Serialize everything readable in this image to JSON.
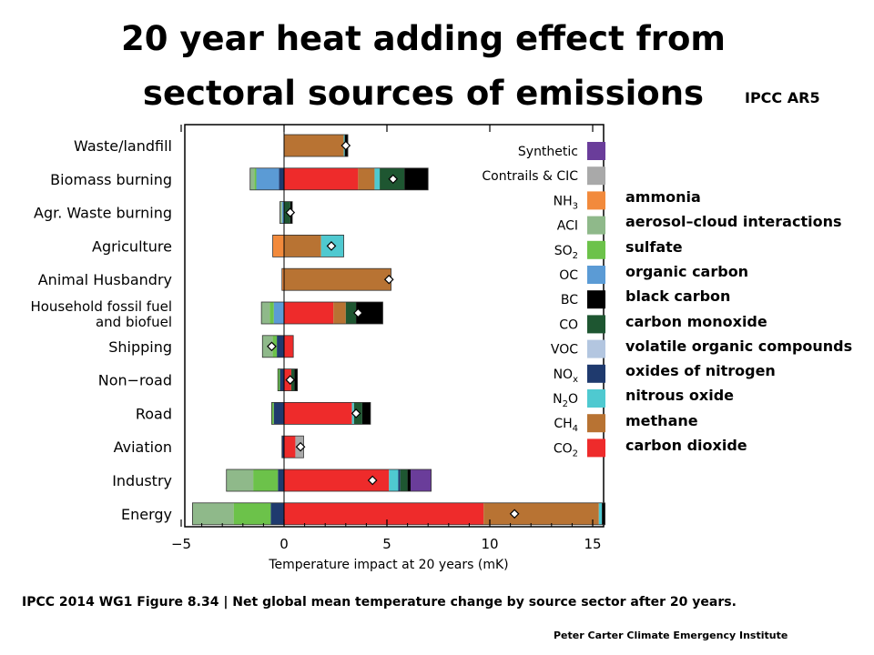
{
  "title_line1": "20 year heat adding effect from",
  "title_line2": "sectoral sources of emissions",
  "source_tag": "IPCC AR5",
  "caption": "IPCC 2014 WG1 Figure 8.34 | Net global mean temperature change by source sector after 20 years.",
  "credit": "Peter Carter Climate Emergency Institute",
  "gas_descriptions": [
    "ammonia",
    "aerosol–cloud interactions",
    "sulfate",
    "organic carbon",
    "black carbon",
    "carbon monoxide",
    "volatile organic compounds",
    "oxides of nitrogen",
    "nitrous oxide",
    "methane",
    "carbon dioxide"
  ],
  "chart_data": {
    "type": "bar",
    "orientation": "horizontal",
    "stacked": true,
    "xlabel": "Temperature impact at 20 years (mK)",
    "xlim": [
      -5,
      16
    ],
    "xticks": [
      -5,
      0,
      5,
      10,
      15
    ],
    "grid": false,
    "legend_position": "right",
    "colors": {
      "Synthetic": "#6a3d9a",
      "Contrails & CIC": "#a9a9a9",
      "NH3": "#f28a3c",
      "ACI": "#8fb98a",
      "SO2": "#6cc24a",
      "OC": "#5b9bd5",
      "BC": "#000000",
      "CO": "#1e5631",
      "VOC": "#b3c6e0",
      "NOx": "#1f3a6e",
      "N2O": "#4fc9d0",
      "CH4": "#b87333",
      "CO2": "#ee2b2b"
    },
    "legend": [
      {
        "key": "Synthetic",
        "label": "Synthetic",
        "sub": ""
      },
      {
        "key": "Contrails & CIC",
        "label": "Contrails & CIC",
        "sub": ""
      },
      {
        "key": "NH3",
        "label": "NH",
        "sub": "3"
      },
      {
        "key": "ACI",
        "label": "ACI",
        "sub": ""
      },
      {
        "key": "SO2",
        "label": "SO",
        "sub": "2"
      },
      {
        "key": "OC",
        "label": "OC",
        "sub": ""
      },
      {
        "key": "BC",
        "label": "BC",
        "sub": ""
      },
      {
        "key": "CO",
        "label": "CO",
        "sub": ""
      },
      {
        "key": "VOC",
        "label": "VOC",
        "sub": ""
      },
      {
        "key": "NOx",
        "label": "NO",
        "sub": "x"
      },
      {
        "key": "N2O",
        "label": "N",
        "sub": "2",
        "tail": "O"
      },
      {
        "key": "CH4",
        "label": "CH",
        "sub": "4"
      },
      {
        "key": "CO2",
        "label": "CO",
        "sub": "2"
      }
    ],
    "sectors": [
      {
        "name": [
          "Waste/landfill"
        ],
        "net": 3.0,
        "positive": [
          [
            "CH4",
            2.9
          ],
          [
            "N2O",
            0.05
          ],
          [
            "BC",
            0.15
          ]
        ],
        "negative": []
      },
      {
        "name": [
          "Biomass burning"
        ],
        "net": 5.3,
        "positive": [
          [
            "CO2",
            3.6
          ],
          [
            "CH4",
            0.8
          ],
          [
            "N2O",
            0.25
          ],
          [
            "CO",
            1.2
          ],
          [
            "BC",
            1.15
          ]
        ],
        "negative": [
          [
            "NOx",
            0.25
          ],
          [
            "OC",
            1.1
          ],
          [
            "SO2",
            0.1
          ],
          [
            "ACI",
            0.2
          ]
        ]
      },
      {
        "name": [
          "Agr. Waste burning"
        ],
        "net": 0.3,
        "positive": [
          [
            "CO",
            0.3
          ],
          [
            "BC",
            0.1
          ]
        ],
        "negative": [
          [
            "OC",
            0.1
          ],
          [
            "ACI",
            0.1
          ]
        ]
      },
      {
        "name": [
          "Agriculture"
        ],
        "net": 2.3,
        "positive": [
          [
            "CH4",
            1.8
          ],
          [
            "N2O",
            1.1
          ]
        ],
        "negative": [
          [
            "NH3",
            0.55
          ]
        ]
      },
      {
        "name": [
          "Animal Husbandry"
        ],
        "net": 5.1,
        "positive": [
          [
            "CH4",
            5.2
          ]
        ],
        "negative": [
          [
            "NH3",
            0.1
          ]
        ]
      },
      {
        "name": [
          "Household fossil fuel",
          "and biofuel"
        ],
        "net": 3.6,
        "positive": [
          [
            "CO2",
            2.4
          ],
          [
            "CH4",
            0.6
          ],
          [
            "CO",
            0.5
          ],
          [
            "BC",
            1.3
          ]
        ],
        "negative": [
          [
            "OC",
            0.5
          ],
          [
            "SO2",
            0.2
          ],
          [
            "ACI",
            0.4
          ]
        ]
      },
      {
        "name": [
          "Shipping"
        ],
        "net": -0.6,
        "positive": [
          [
            "CO2",
            0.45
          ]
        ],
        "negative": [
          [
            "NOx",
            0.35
          ],
          [
            "SO2",
            0.2
          ],
          [
            "ACI",
            0.5
          ]
        ]
      },
      {
        "name": [
          "Non−road"
        ],
        "net": 0.3,
        "positive": [
          [
            "CO2",
            0.35
          ],
          [
            "CO",
            0.15
          ],
          [
            "BC",
            0.15
          ]
        ],
        "negative": [
          [
            "NOx",
            0.2
          ],
          [
            "SO2",
            0.1
          ]
        ]
      },
      {
        "name": [
          "Road"
        ],
        "net": 3.5,
        "positive": [
          [
            "CO2",
            3.3
          ],
          [
            "N2O",
            0.1
          ],
          [
            "CO",
            0.4
          ],
          [
            "BC",
            0.4
          ]
        ],
        "negative": [
          [
            "NOx",
            0.5
          ],
          [
            "SO2",
            0.1
          ]
        ]
      },
      {
        "name": [
          "Aviation"
        ],
        "net": 0.8,
        "positive": [
          [
            "CO2",
            0.55
          ],
          [
            "Contrails & CIC",
            0.4
          ]
        ],
        "negative": [
          [
            "NOx",
            0.1
          ]
        ]
      },
      {
        "name": [
          "Industry"
        ],
        "net": 4.3,
        "positive": [
          [
            "CO2",
            5.1
          ],
          [
            "N2O",
            0.45
          ],
          [
            "NOx",
            0.1
          ],
          [
            "CO",
            0.35
          ],
          [
            "BC",
            0.15
          ],
          [
            "Synthetic",
            1.0
          ]
        ],
        "negative": [
          [
            "NOx",
            0.3
          ],
          [
            "SO2",
            1.2
          ],
          [
            "ACI",
            1.3
          ]
        ]
      },
      {
        "name": [
          "Energy"
        ],
        "net": 11.2,
        "positive": [
          [
            "CO2",
            9.7
          ],
          [
            "CH4",
            5.6
          ],
          [
            "N2O",
            0.15
          ],
          [
            "BC",
            0.15
          ]
        ],
        "negative": [
          [
            "NOx",
            0.65
          ],
          [
            "SO2",
            1.8
          ],
          [
            "ACI",
            2.0
          ]
        ]
      }
    ]
  }
}
